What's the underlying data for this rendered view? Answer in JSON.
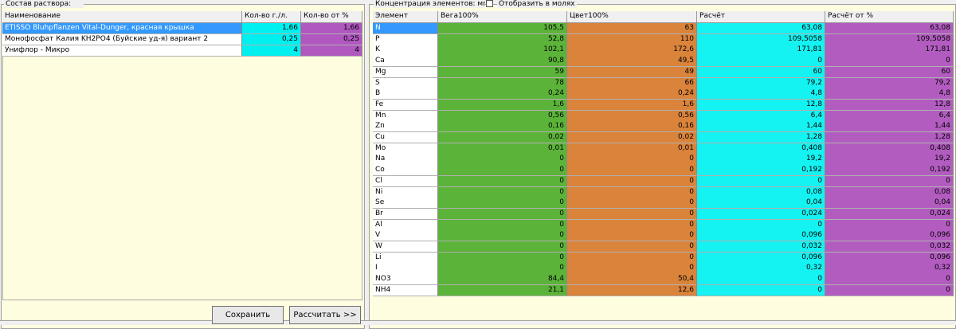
{
  "left": {
    "title": "Состав раствора:",
    "columns": [
      "Наименование",
      "Кол-во г./л.",
      "Кол-во от %"
    ],
    "rows": [
      [
        "ETISSO Bluhpflanzen Vital-Dunger, красная крышка",
        "1,66",
        "1,66"
      ],
      [
        "Монофосфат Калия KH2PO4 (Буйские уд-я) вариант 2",
        "0,25",
        "0,25"
      ],
      [
        "Унифлор - Микро",
        "4",
        "4"
      ]
    ],
    "buttons": [
      "Сохранить",
      "Рассчитать >>"
    ]
  },
  "right": {
    "title": "Концентрация элементов: мг/л.",
    "checkbox_label": "Отобразить в молях",
    "columns": [
      "Элемент",
      "Вега100%",
      "Цвет100%",
      "Расчёт",
      "Расчёт от %"
    ],
    "rows": [
      [
        "N",
        "105,5",
        "63",
        "63,08",
        "63,08"
      ],
      [
        "P",
        "52,8",
        "110",
        "109,5058",
        "109,5058"
      ],
      [
        "K",
        "102,1",
        "172,6",
        "171,81",
        "171,81"
      ],
      [
        "Ca",
        "90,8",
        "49,5",
        "0",
        "0"
      ],
      [
        "Mg",
        "59",
        "49",
        "60",
        "60"
      ],
      [
        "S",
        "78",
        "66",
        "79,2",
        "79,2"
      ],
      [
        "B",
        "0,24",
        "0,24",
        "4,8",
        "4,8"
      ],
      [
        "Fe",
        "1,6",
        "1,6",
        "12,8",
        "12,8"
      ],
      [
        "Mn",
        "0,56",
        "0,56",
        "6,4",
        "6,4"
      ],
      [
        "Zn",
        "0,16",
        "0,16",
        "1,44",
        "1,44"
      ],
      [
        "Cu",
        "0,02",
        "0,02",
        "1,28",
        "1,28"
      ],
      [
        "Mo",
        "0,01",
        "0,01",
        "0,408",
        "0,408"
      ],
      [
        "Na",
        "0",
        "0",
        "19,2",
        "19,2"
      ],
      [
        "Co",
        "0",
        "0",
        "0,192",
        "0,192"
      ],
      [
        "Cl",
        "0",
        "0",
        "0",
        "0"
      ],
      [
        "Ni",
        "0",
        "0",
        "0,08",
        "0,08"
      ],
      [
        "Se",
        "0",
        "0",
        "0,04",
        "0,04"
      ],
      [
        "Br",
        "0",
        "0",
        "0,024",
        "0,024"
      ],
      [
        "Al",
        "0",
        "0",
        "0",
        "0"
      ],
      [
        "V",
        "0",
        "0",
        "0,096",
        "0,096"
      ],
      [
        "W",
        "0",
        "0",
        "0,032",
        "0,032"
      ],
      [
        "Li",
        "0",
        "0",
        "0,096",
        "0,096"
      ],
      [
        "I",
        "0",
        "0",
        "0,32",
        "0,32"
      ],
      [
        "NO3",
        "84,4",
        "50,4",
        "0",
        "0"
      ],
      [
        "NH4",
        "21,1",
        "12,6",
        "0",
        "0"
      ]
    ]
  }
}
